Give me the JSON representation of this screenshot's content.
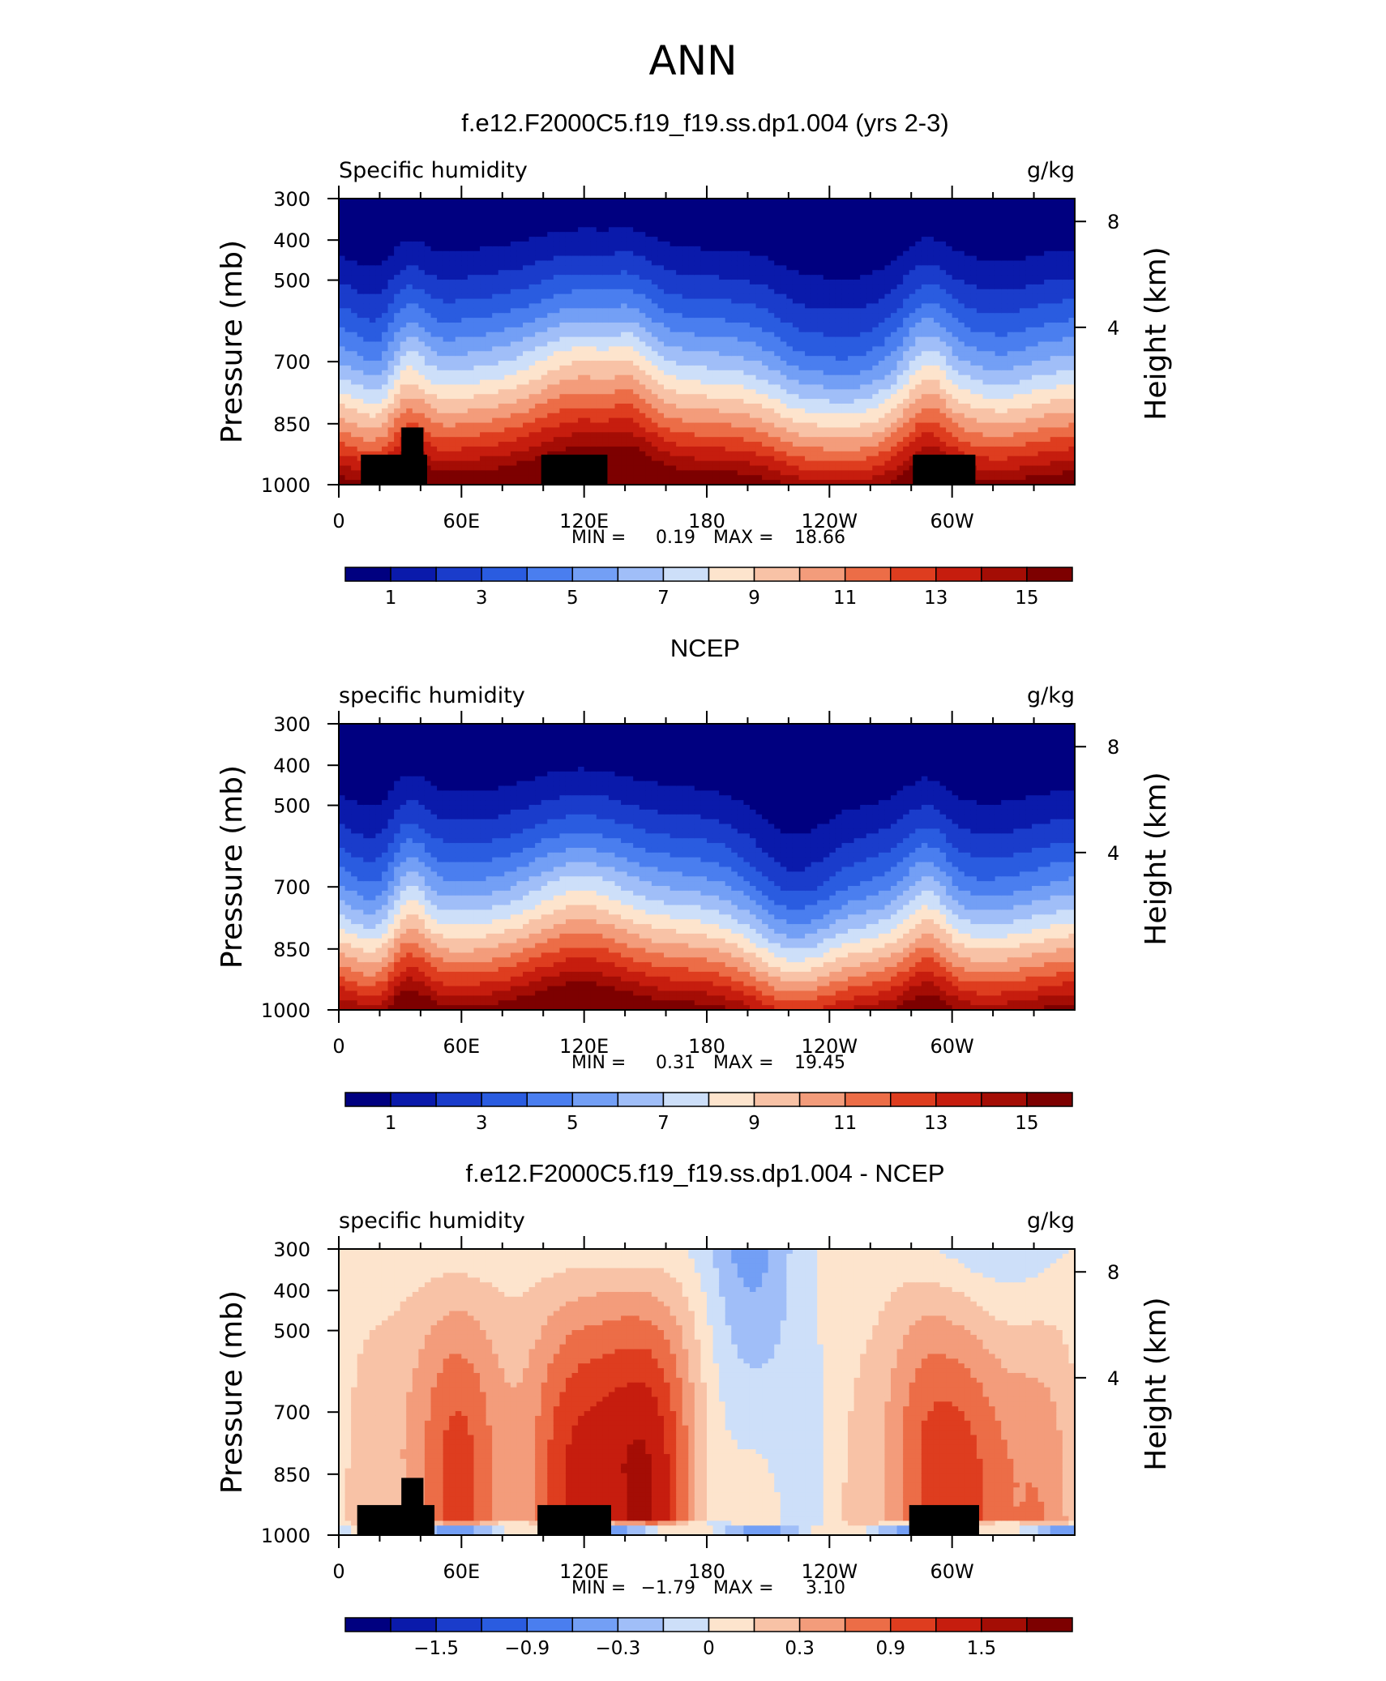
{
  "figure_title": "ANN",
  "chart_data": [
    {
      "type": "heatmap",
      "title": "f.e12.F2000C5.f19_f19.ss.dp1.004 (yrs 2-3)",
      "left_label": "Specific humidity",
      "right_label": "g/kg",
      "ylabel": "Pressure (mb)",
      "y2label": "Height (km)",
      "x_ticks": [
        "0",
        "60E",
        "120E",
        "180",
        "120W",
        "60W"
      ],
      "y_ticks": [
        "300",
        "400",
        "500",
        "700",
        "850",
        "1000"
      ],
      "y2_ticks": [
        "8",
        "4"
      ],
      "ylim": [
        1000,
        300
      ],
      "stats": {
        "min_label": "MIN =",
        "min": "0.19",
        "max_label": "MAX =",
        "max": "18.66"
      },
      "colorbar_labels": [
        "1",
        "3",
        "5",
        "7",
        "9",
        "11",
        "13",
        "15"
      ],
      "colorbar_colors": [
        "#000080",
        "#0a1aab",
        "#1a3ccb",
        "#2a5ce0",
        "#4a7eef",
        "#739ff5",
        "#a0bef8",
        "#cddff9",
        "#fde4cd",
        "#f8c2a6",
        "#f39c7b",
        "#ec6d47",
        "#de3d1f",
        "#c61d0e",
        "#a40d05",
        "#7d0000"
      ],
      "min_value": 0.19,
      "max_value": 18.66
    },
    {
      "type": "heatmap",
      "title": "NCEP",
      "left_label": "specific humidity",
      "right_label": "g/kg",
      "ylabel": "Pressure (mb)",
      "y2label": "Height (km)",
      "x_ticks": [
        "0",
        "60E",
        "120E",
        "180",
        "120W",
        "60W"
      ],
      "y_ticks": [
        "300",
        "400",
        "500",
        "700",
        "850",
        "1000"
      ],
      "y2_ticks": [
        "8",
        "4"
      ],
      "ylim": [
        1000,
        300
      ],
      "stats": {
        "min_label": "MIN =",
        "min": "0.31",
        "max_label": "MAX =",
        "max": "19.45"
      },
      "colorbar_labels": [
        "1",
        "3",
        "5",
        "7",
        "9",
        "11",
        "13",
        "15"
      ],
      "colorbar_colors": [
        "#000080",
        "#0a1aab",
        "#1a3ccb",
        "#2a5ce0",
        "#4a7eef",
        "#739ff5",
        "#a0bef8",
        "#cddff9",
        "#fde4cd",
        "#f8c2a6",
        "#f39c7b",
        "#ec6d47",
        "#de3d1f",
        "#c61d0e",
        "#a40d05",
        "#7d0000"
      ],
      "min_value": 0.31,
      "max_value": 19.45
    },
    {
      "type": "heatmap",
      "title": "f.e12.F2000C5.f19_f19.ss.dp1.004 - NCEP",
      "left_label": "specific humidity",
      "right_label": "g/kg",
      "ylabel": "Pressure (mb)",
      "y2label": "Height (km)",
      "x_ticks": [
        "0",
        "60E",
        "120E",
        "180",
        "120W",
        "60W"
      ],
      "y_ticks": [
        "300",
        "400",
        "500",
        "700",
        "850",
        "1000"
      ],
      "y2_ticks": [
        "8",
        "4"
      ],
      "ylim": [
        1000,
        300
      ],
      "stats": {
        "min_label": "MIN =",
        "min": "−1.79",
        "max_label": "MAX =",
        "max": "3.10"
      },
      "colorbar_labels": [
        "−1.5",
        "−0.9",
        "−0.3",
        "0",
        "0.3",
        "0.9",
        "1.5"
      ],
      "colorbar_colors": [
        "#000080",
        "#0a1aab",
        "#1a3ccb",
        "#2a5ce0",
        "#4a7eef",
        "#739ff5",
        "#a0bef8",
        "#cddff9",
        "#fde4cd",
        "#f8c2a6",
        "#f39c7b",
        "#ec6d47",
        "#de3d1f",
        "#c61d0e",
        "#a40d05",
        "#7d0000"
      ],
      "min_value": -1.79,
      "max_value": 3.1
    }
  ]
}
